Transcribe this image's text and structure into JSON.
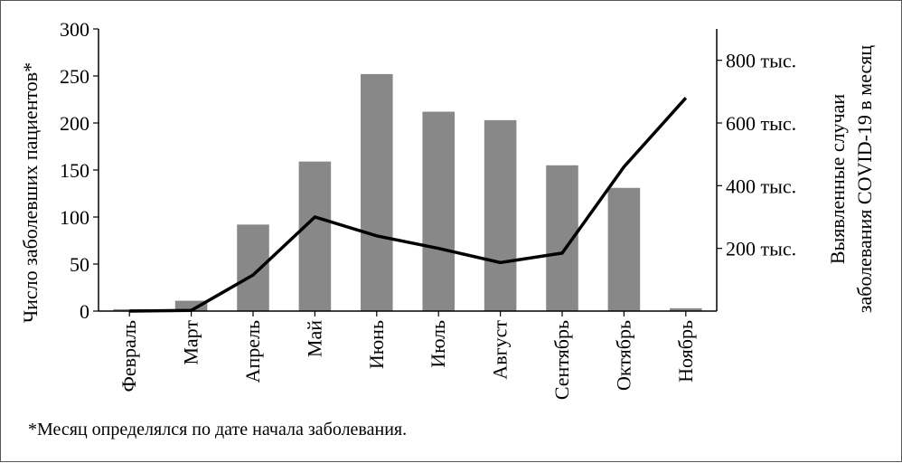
{
  "chart_data": {
    "type": "bar",
    "categories": [
      "Февраль",
      "Март",
      "Апрель",
      "Май",
      "Июнь",
      "Июль",
      "Август",
      "Сентябрь",
      "Октябрь",
      "Ноябрь"
    ],
    "series": [
      {
        "type": "bar",
        "axis": "left",
        "values": [
          2,
          11,
          92,
          159,
          252,
          212,
          203,
          155,
          131,
          3
        ],
        "color": "#888888"
      },
      {
        "type": "line",
        "axis": "right",
        "values": [
          0,
          2,
          115,
          300,
          240,
          200,
          155,
          185,
          460,
          680
        ],
        "color": "#000000"
      }
    ],
    "ylabel": "Число заболевших пациентов*",
    "ylim": [
      0,
      300
    ],
    "yticks": [
      0,
      50,
      100,
      150,
      200,
      250,
      300
    ],
    "y2label_lines": [
      "Выявленные случаи",
      "заболевания COVID-19 в месяц"
    ],
    "y2lim": [
      0,
      900
    ],
    "y2ticks": [
      200,
      400,
      600,
      800
    ],
    "y2ticklabels": [
      "200 тыс.",
      "400 тыс.",
      "600 тыс.",
      "800 тыс."
    ],
    "footnote": "*Месяц определялся по дате начала заболевания."
  }
}
